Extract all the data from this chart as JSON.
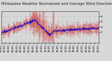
{
  "title": "Milwaukee Weather Normalized and Average Wind Direction (Last 24 Hours)",
  "subtitle": "Wind Direction",
  "n_points": 288,
  "y_min": -1,
  "y_max": 5,
  "background_color": "#d8d8d8",
  "plot_bg_color": "#d8d8d8",
  "grid_color": "#aaaaaa",
  "bar_color": "#cc0000",
  "line_color": "#0000cc",
  "title_fontsize": 3.8,
  "label_fontsize": 3.0,
  "yticks": [
    1,
    2,
    3,
    4
  ],
  "ytick_labels": [
    "1",
    "2",
    "3",
    "4"
  ]
}
